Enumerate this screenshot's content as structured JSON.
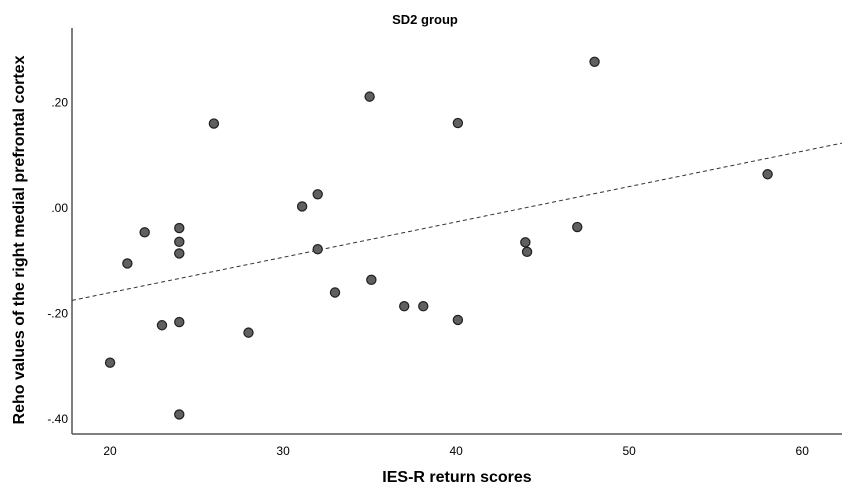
{
  "chart_data": {
    "type": "scatter",
    "title": "SD2 group",
    "xlabel": "IES-R return scores",
    "ylabel": "Reho values of the right medial prefrontal cortex",
    "xlim": [
      17.8,
      62.3
    ],
    "ylim": [
      -0.428,
      0.341
    ],
    "grid": false,
    "legend": "none",
    "x_ticks": [
      {
        "value": 20,
        "label": "20"
      },
      {
        "value": 30,
        "label": "30"
      },
      {
        "value": 40,
        "label": "40"
      },
      {
        "value": 50,
        "label": "50"
      },
      {
        "value": 60,
        "label": "60"
      }
    ],
    "y_ticks": [
      {
        "value": 0.2,
        "label": ".20"
      },
      {
        "value": 0.0,
        "label": ".00"
      },
      {
        "value": -0.2,
        "label": "-.20"
      },
      {
        "value": -0.4,
        "label": "-.40"
      }
    ],
    "points": [
      [
        20.0,
        -0.293
      ],
      [
        21.0,
        -0.105
      ],
      [
        22.0,
        -0.046
      ],
      [
        23.0,
        -0.222
      ],
      [
        24.0,
        -0.038
      ],
      [
        24.0,
        -0.064
      ],
      [
        24.0,
        -0.086
      ],
      [
        24.0,
        -0.216
      ],
      [
        24.0,
        -0.391
      ],
      [
        26.0,
        0.16
      ],
      [
        28.0,
        -0.236
      ],
      [
        31.1,
        0.003
      ],
      [
        32.0,
        0.026
      ],
      [
        32.0,
        -0.078
      ],
      [
        33.0,
        -0.16
      ],
      [
        35.0,
        0.211
      ],
      [
        35.1,
        -0.136
      ],
      [
        37.0,
        -0.186
      ],
      [
        38.1,
        -0.186
      ],
      [
        40.1,
        0.161
      ],
      [
        40.1,
        -0.212
      ],
      [
        44.0,
        -0.065
      ],
      [
        44.1,
        -0.083
      ],
      [
        47.0,
        -0.036
      ],
      [
        48.0,
        0.277
      ],
      [
        58.0,
        0.064
      ]
    ],
    "trend_line": {
      "style": "dashed",
      "x1": 17.8,
      "y1": -0.175,
      "x2": 62.3,
      "y2": 0.123
    },
    "marker": {
      "radius": 4.6,
      "fill": "#606060",
      "stroke": "#1f1f1f"
    },
    "colors": {
      "axis": "#555555",
      "trend": "#333333",
      "text": "#000000",
      "background": "#ffffff"
    }
  }
}
